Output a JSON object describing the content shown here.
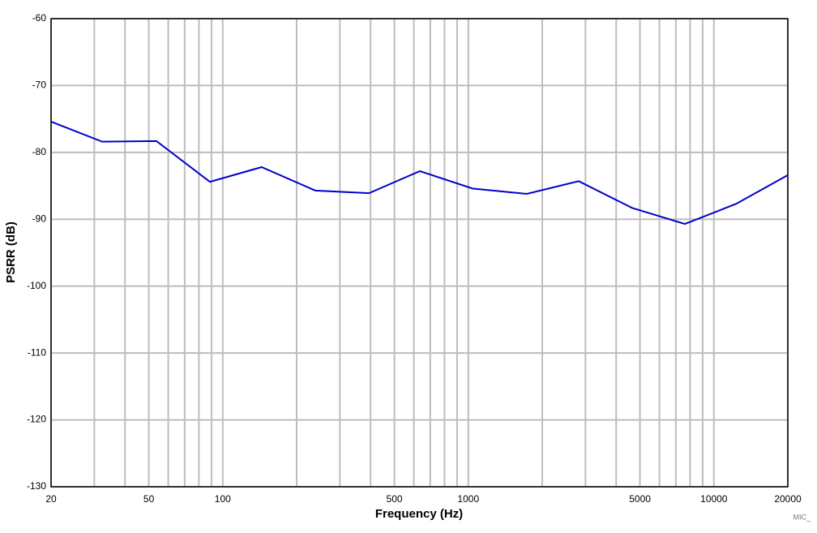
{
  "chart_data": {
    "type": "line",
    "xlabel": "Frequency (Hz)",
    "ylabel": "PSRR (dB)",
    "note": "MIC_",
    "xscale": "log",
    "grid": true,
    "xlim": [
      20,
      20000
    ],
    "xticks": [
      20,
      50,
      100,
      500,
      1000,
      5000,
      10000,
      20000
    ],
    "xminor_grid": [
      30,
      40,
      60,
      70,
      80,
      90,
      200,
      300,
      400,
      600,
      700,
      800,
      900,
      2000,
      3000,
      4000,
      6000,
      7000,
      8000,
      9000
    ],
    "ylim": [
      -130,
      -60
    ],
    "yticks": [
      -130,
      -120,
      -110,
      -100,
      -90,
      -80,
      -70,
      -60
    ],
    "series": [
      {
        "color": "#0000cc",
        "x": [
          20,
          32.3,
          53.7,
          88.7,
          144,
          238,
          394,
          635,
          1040,
          1730,
          2816,
          4645,
          7620,
          12300,
          20000
        ],
        "values": [
          -75.4,
          -78.4,
          -78.3,
          -84.4,
          -82.2,
          -85.7,
          -86.1,
          -82.8,
          -85.4,
          -86.2,
          -84.3,
          -88.3,
          -90.7,
          -87.7,
          -83.4
        ]
      }
    ]
  }
}
